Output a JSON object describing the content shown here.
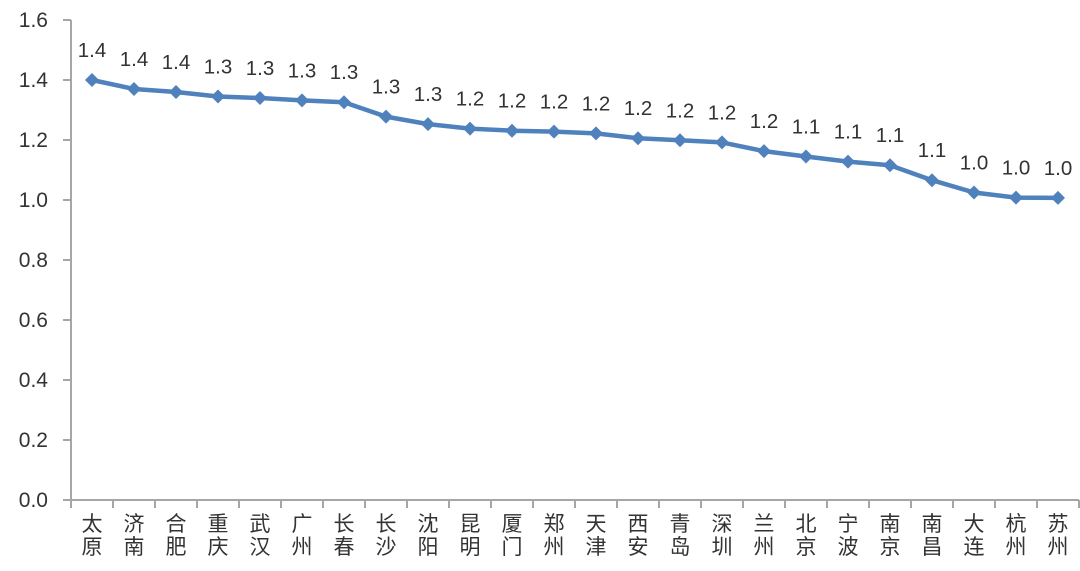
{
  "chart_data": {
    "type": "line",
    "title": "",
    "xlabel": "",
    "ylabel": "",
    "legend": "none",
    "grid": false,
    "categories": [
      "太原",
      "济南",
      "合肥",
      "重庆",
      "武汉",
      "广州",
      "长春",
      "长沙",
      "沈阳",
      "昆明",
      "厦门",
      "郑州",
      "天津",
      "西安",
      "青岛",
      "深圳",
      "兰州",
      "北京",
      "宁波",
      "南京",
      "南昌",
      "大连",
      "杭州",
      "苏州"
    ],
    "values": [
      1.4,
      1.37,
      1.36,
      1.345,
      1.34,
      1.332,
      1.326,
      1.278,
      1.253,
      1.238,
      1.231,
      1.228,
      1.222,
      1.206,
      1.199,
      1.192,
      1.163,
      1.145,
      1.128,
      1.116,
      1.066,
      1.025,
      1.008,
      1.007
    ],
    "point_labels": [
      "1.4",
      "1.4",
      "1.4",
      "1.3",
      "1.3",
      "1.3",
      "1.3",
      "1.3",
      "1.3",
      "1.2",
      "1.2",
      "1.2",
      "1.2",
      "1.2",
      "1.2",
      "1.2",
      "1.2",
      "1.1",
      "1.1",
      "1.1",
      "1.1",
      "1.0",
      "1.0",
      "1.0"
    ],
    "ylim": [
      0.0,
      1.6
    ],
    "ytick_step": 0.2,
    "ytick_labels": [
      "0.0",
      "0.2",
      "0.4",
      "0.6",
      "0.8",
      "1.0",
      "1.2",
      "1.4",
      "1.6"
    ],
    "colors": {
      "series": "#4F81BD",
      "axis": "#A6A6A6",
      "text": "#333333"
    }
  }
}
